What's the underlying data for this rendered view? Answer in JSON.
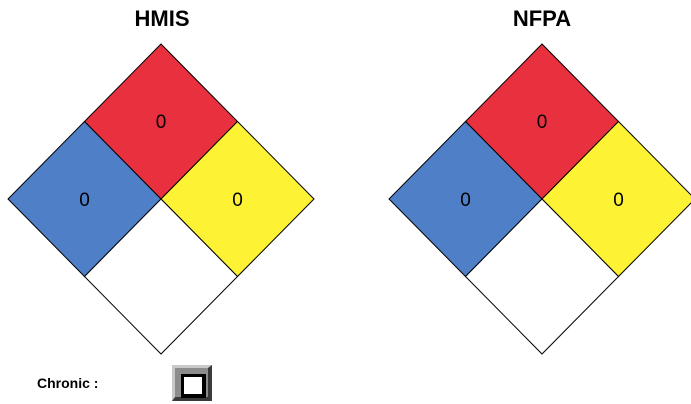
{
  "hmis": {
    "title": "HMIS",
    "health": "0",
    "flammability": "0",
    "reactivity": "0",
    "special": ""
  },
  "nfpa": {
    "title": "NFPA",
    "health": "0",
    "flammability": "0",
    "reactivity": "0",
    "special": ""
  },
  "chronic": {
    "label": "Chronic :",
    "checked": false
  },
  "colors": {
    "flammability": "#e8303f",
    "health": "#4f7fc7",
    "reactivity": "#fdf334",
    "special": "#ffffff",
    "outline": "#000000"
  }
}
